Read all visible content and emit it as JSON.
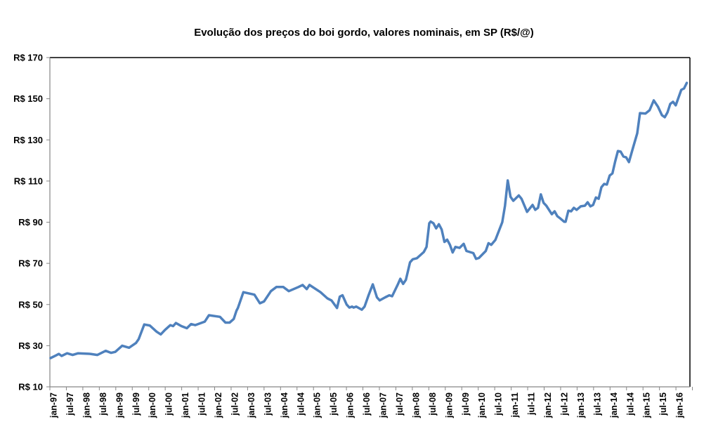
{
  "chart_data": {
    "type": "line",
    "title": "Evolução dos preços do boi gordo, valores nominais, em SP (R$/@)",
    "xlabel": "",
    "ylabel": "",
    "x_unit": "months since jan-97",
    "ylim": [
      10,
      170
    ],
    "y_ticks": [
      10,
      30,
      50,
      70,
      90,
      110,
      130,
      150,
      170
    ],
    "y_tick_labels": [
      "R$ 10",
      "R$ 30",
      "R$ 50",
      "R$ 70",
      "R$ 90",
      "R$ 110",
      "R$ 130",
      "R$ 150",
      "R$ 170"
    ],
    "x_tick_labels": [
      "jan-97",
      "jul-97",
      "jan-98",
      "jul-98",
      "jan-99",
      "jul-99",
      "jan-00",
      "jul-00",
      "jan-01",
      "jul-01",
      "jan-02",
      "jul-02",
      "jan-03",
      "jul-03",
      "jan-04",
      "jul-04",
      "jan-05",
      "jul-05",
      "jan-06",
      "jul-06",
      "jan-07",
      "jul-07",
      "jan-08",
      "jul-08",
      "jan-09",
      "jul-09",
      "jan-10",
      "jul-10",
      "jan-11",
      "jul-11",
      "jan-12",
      "jul-12",
      "jan-13",
      "jul-13",
      "jan-14",
      "jul-14",
      "jan-15",
      "jul-15",
      "jan-16"
    ],
    "grid": false,
    "legend": "none",
    "series": [
      {
        "name": "Boi gordo SP (R$/@)",
        "color": "#4F81BD",
        "points": [
          [
            0,
            24
          ],
          [
            2,
            25.3
          ],
          [
            3,
            26
          ],
          [
            4,
            25
          ],
          [
            6,
            26.3
          ],
          [
            8,
            25.5
          ],
          [
            10,
            26.3
          ],
          [
            14.5,
            26
          ],
          [
            17,
            25.5
          ],
          [
            20,
            27.5
          ],
          [
            22,
            26.5
          ],
          [
            23.5,
            27
          ],
          [
            26,
            30
          ],
          [
            28.5,
            29
          ],
          [
            31,
            31.3
          ],
          [
            32,
            33.2
          ],
          [
            34,
            40.3
          ],
          [
            36,
            39.8
          ],
          [
            38.5,
            36.8
          ],
          [
            40,
            35.5
          ],
          [
            41.5,
            37.6
          ],
          [
            43.5,
            40
          ],
          [
            44.5,
            39.5
          ],
          [
            45.5,
            41
          ],
          [
            47.5,
            39.5
          ],
          [
            49.5,
            38.5
          ],
          [
            51,
            40.5
          ],
          [
            52.5,
            40
          ],
          [
            56,
            41.7
          ],
          [
            57.5,
            44.8
          ],
          [
            61.5,
            44
          ],
          [
            63.5,
            41.2
          ],
          [
            65,
            41.2
          ],
          [
            66.5,
            43
          ],
          [
            67.5,
            47
          ],
          [
            68,
            48.3
          ],
          [
            70,
            56
          ],
          [
            74,
            54.8
          ],
          [
            76,
            50.6
          ],
          [
            77.5,
            51.5
          ],
          [
            80,
            56.5
          ],
          [
            82,
            58.5
          ],
          [
            84.5,
            58.5
          ],
          [
            86.5,
            56.5
          ],
          [
            90,
            58.5
          ],
          [
            91.5,
            59.5
          ],
          [
            93,
            57.5
          ],
          [
            94,
            59.5
          ],
          [
            98,
            56
          ],
          [
            100.5,
            53
          ],
          [
            102,
            52
          ],
          [
            104,
            48.3
          ],
          [
            105,
            53.8
          ],
          [
            106,
            54.5
          ],
          [
            107.5,
            50
          ],
          [
            108.5,
            48.5
          ],
          [
            109.5,
            49
          ],
          [
            110,
            48.5
          ],
          [
            111,
            49
          ],
          [
            113,
            47.5
          ],
          [
            114,
            49
          ],
          [
            115.5,
            54.7
          ],
          [
            117,
            59.8
          ],
          [
            118.5,
            53.5
          ],
          [
            119.5,
            52
          ],
          [
            121.5,
            53.5
          ],
          [
            123,
            54.5
          ],
          [
            124,
            54
          ],
          [
            126,
            59.5
          ],
          [
            127,
            62.5
          ],
          [
            128,
            60
          ],
          [
            129,
            62
          ],
          [
            130.5,
            70.5
          ],
          [
            131.5,
            72
          ],
          [
            133,
            72.5
          ],
          [
            135.5,
            75.5
          ],
          [
            136.5,
            78
          ],
          [
            137.5,
            89.5
          ],
          [
            138,
            90.3
          ],
          [
            139,
            89.5
          ],
          [
            140,
            87
          ],
          [
            141,
            89
          ],
          [
            142,
            86.5
          ],
          [
            143,
            80.4
          ],
          [
            144,
            81.5
          ],
          [
            145,
            79
          ],
          [
            146,
            75.3
          ],
          [
            147,
            78
          ],
          [
            148.5,
            77.5
          ],
          [
            150,
            79.5
          ],
          [
            151,
            76
          ],
          [
            153.5,
            75
          ],
          [
            154.5,
            72.2
          ],
          [
            155.5,
            72.6
          ],
          [
            158,
            76
          ],
          [
            159,
            79.8
          ],
          [
            160,
            79
          ],
          [
            161.5,
            81.4
          ],
          [
            164,
            90
          ],
          [
            165,
            98
          ],
          [
            166,
            110.3
          ],
          [
            167,
            102.4
          ],
          [
            168,
            100.4
          ],
          [
            170,
            103
          ],
          [
            171,
            101.4
          ],
          [
            173,
            95
          ],
          [
            175,
            98.4
          ],
          [
            176,
            96
          ],
          [
            177,
            97
          ],
          [
            178,
            103.5
          ],
          [
            179,
            99.4
          ],
          [
            180,
            98
          ],
          [
            182,
            93.9
          ],
          [
            183,
            95.3
          ],
          [
            184,
            92.9
          ],
          [
            185,
            91.9
          ],
          [
            186.5,
            90.2
          ],
          [
            187,
            90.2
          ],
          [
            188,
            95.6
          ],
          [
            189,
            95.3
          ],
          [
            190,
            97
          ],
          [
            191,
            96
          ],
          [
            192.5,
            97.7
          ],
          [
            194,
            98
          ],
          [
            195,
            99.7
          ],
          [
            196,
            97.7
          ],
          [
            197,
            98.4
          ],
          [
            198,
            102
          ],
          [
            199,
            101.4
          ],
          [
            200,
            107
          ],
          [
            201,
            108.6
          ],
          [
            202,
            108.3
          ],
          [
            203,
            112.7
          ],
          [
            204,
            113.7
          ],
          [
            205,
            119.5
          ],
          [
            206,
            124.6
          ],
          [
            207,
            124.3
          ],
          [
            208,
            121.9
          ],
          [
            209,
            121.5
          ],
          [
            210,
            119.2
          ],
          [
            211.5,
            126.3
          ],
          [
            213,
            133.2
          ],
          [
            214,
            143
          ],
          [
            216,
            142.8
          ],
          [
            217.5,
            144.4
          ],
          [
            219,
            149.2
          ],
          [
            220.5,
            146.2
          ],
          [
            222,
            142
          ],
          [
            223,
            141
          ],
          [
            224,
            143.4
          ],
          [
            225,
            147.5
          ],
          [
            226,
            148.5
          ],
          [
            227,
            146.8
          ],
          [
            229,
            154.3
          ],
          [
            230,
            155
          ],
          [
            231,
            157.7
          ]
        ]
      }
    ]
  }
}
